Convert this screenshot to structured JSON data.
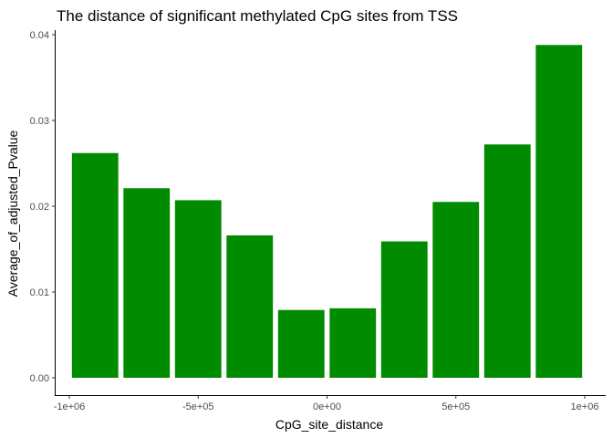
{
  "chart_data": {
    "type": "bar",
    "title": "The distance of significant methylated CpG sites from TSS",
    "xlabel": "CpG_site_distance",
    "ylabel": "Average_of_adjusted_Pvalue",
    "x": [
      -900000,
      -700000,
      -500000,
      -300000,
      -100000,
      100000,
      300000,
      500000,
      700000,
      900000
    ],
    "values": [
      0.0262,
      0.0221,
      0.0207,
      0.0166,
      0.0079,
      0.0081,
      0.0159,
      0.0205,
      0.0272,
      0.0388
    ],
    "bar_width": 180000,
    "xlim": [
      -1000000,
      1000000
    ],
    "ylim": [
      0,
      0.04
    ],
    "x_ticks": [
      -1000000,
      -500000,
      0,
      500000,
      1000000
    ],
    "x_tick_labels": [
      "-1e+06",
      "-5e+05",
      "0e+00",
      "5e+05",
      "1e+06"
    ],
    "y_ticks": [
      0,
      0.01,
      0.02,
      0.03,
      0.04
    ],
    "y_tick_labels": [
      "0.00",
      "0.01",
      "0.02",
      "0.03",
      "0.04"
    ],
    "grid": false,
    "legend": "none",
    "bar_color": "#008B00",
    "axis_color": "#000000"
  }
}
